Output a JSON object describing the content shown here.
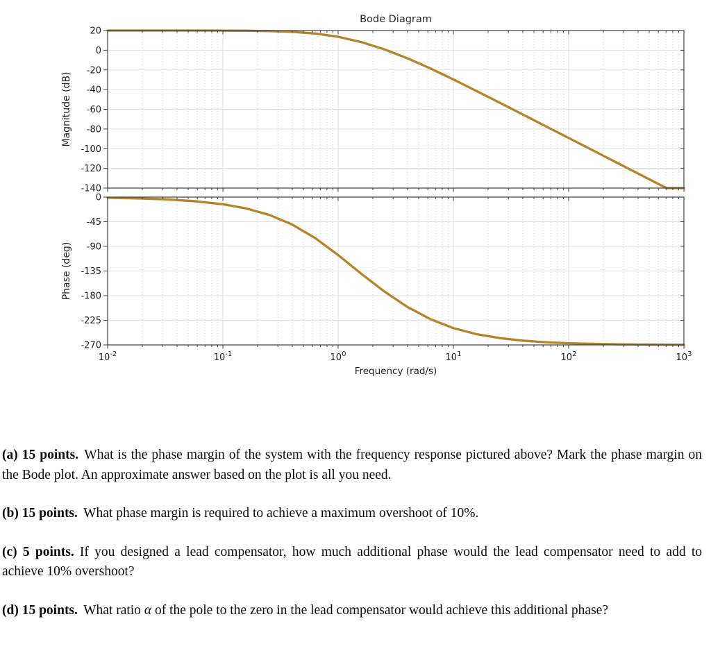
{
  "figure": {
    "title": "Bode Diagram",
    "xlabel": "Frequency  (rad/s)",
    "x_tick_exponents": [
      -2,
      -1,
      0,
      1,
      2,
      3
    ],
    "curve_color": "#b6832b",
    "axis_color": "#3c3c3c",
    "grid_major_color": "#dcdcdc",
    "grid_minor_color": "#cfd3d6",
    "text_color": "#1f1f1f"
  },
  "chart_data": [
    {
      "type": "line",
      "title": "Bode Diagram",
      "ylabel": "Magnitude (dB)",
      "xscale": "log10",
      "xlim_log10": [
        -2,
        3
      ],
      "xticks_log10": [
        -2,
        -1,
        0,
        1,
        2,
        3
      ],
      "ylim": [
        -140,
        20
      ],
      "yticks": [
        20,
        0,
        -20,
        -40,
        -60,
        -80,
        -100,
        -120,
        -140
      ],
      "grid": true,
      "legend": "none",
      "line_color": "#b6832b",
      "x_log10": [
        -2,
        -1.75,
        -1.5,
        -1.25,
        -1,
        -0.8,
        -0.6,
        -0.4,
        -0.2,
        0,
        0.2,
        0.4,
        0.6,
        0.8,
        1,
        1.2,
        1.4,
        1.6,
        1.8,
        2,
        2.2,
        2.4,
        2.6,
        2.8,
        2.85,
        2.9,
        3
      ],
      "y": [
        20.0,
        20.0,
        19.99,
        19.97,
        19.91,
        19.78,
        19.45,
        18.67,
        16.95,
        13.64,
        8.28,
        0.91,
        -8.14,
        -18.49,
        -29.71,
        -41.36,
        -53.21,
        -65.15,
        -77.13,
        -89.13,
        -101.12,
        -113.12,
        -125.12,
        -137.12,
        -140.12,
        -143.12,
        -149.12
      ]
    },
    {
      "type": "line",
      "ylabel": "Phase (deg)",
      "xlabel": "Frequency  (rad/s)",
      "xscale": "log10",
      "xlim_log10": [
        -2,
        3
      ],
      "xticks_log10": [
        -2,
        -1,
        0,
        1,
        2,
        3
      ],
      "ylim": [
        -270,
        0
      ],
      "yticks": [
        0,
        -45,
        -90,
        -135,
        -180,
        -225,
        -270
      ],
      "grid": true,
      "legend": "none",
      "line_color": "#b6832b",
      "x_log10": [
        -2,
        -1.75,
        -1.5,
        -1.25,
        -1,
        -0.8,
        -0.6,
        -0.4,
        -0.2,
        0,
        0.2,
        0.4,
        0.6,
        0.8,
        1,
        1.2,
        1.4,
        1.6,
        1.8,
        2,
        2.2,
        2.4,
        2.6,
        2.8,
        2.85,
        2.9,
        3
      ],
      "y": [
        -1.3,
        -2.3,
        -4.1,
        -7.4,
        -13.1,
        -20.6,
        -32.3,
        -49.9,
        -74.7,
        -105.9,
        -139.9,
        -172.3,
        -200.5,
        -222.9,
        -239.3,
        -250.3,
        -257.5,
        -262.1,
        -265.0,
        -266.9,
        -268.0,
        -268.7,
        -269.2,
        -269.4,
        -269.5,
        -269.5,
        -269.7
      ]
    }
  ],
  "questions": [
    {
      "label": "(a) 15 points.",
      "text": "What is the phase margin of the system with the frequency response pictured above? Mark the phase margin on the Bode plot. An approximate answer based on the plot is all you need."
    },
    {
      "label": "(b) 15 points.",
      "text": "What phase margin is required to achieve a maximum overshoot of 10%."
    },
    {
      "label": "(c) 5 points.",
      "text": "If you designed a lead compensator, how much additional phase would the lead compensator need to add to achieve 10% overshoot?"
    },
    {
      "label": "(d) 15 points.",
      "pre": "What ratio ",
      "alpha": "α",
      "post": " of the pole to the zero in the lead compensator would achieve this additional phase?"
    }
  ]
}
